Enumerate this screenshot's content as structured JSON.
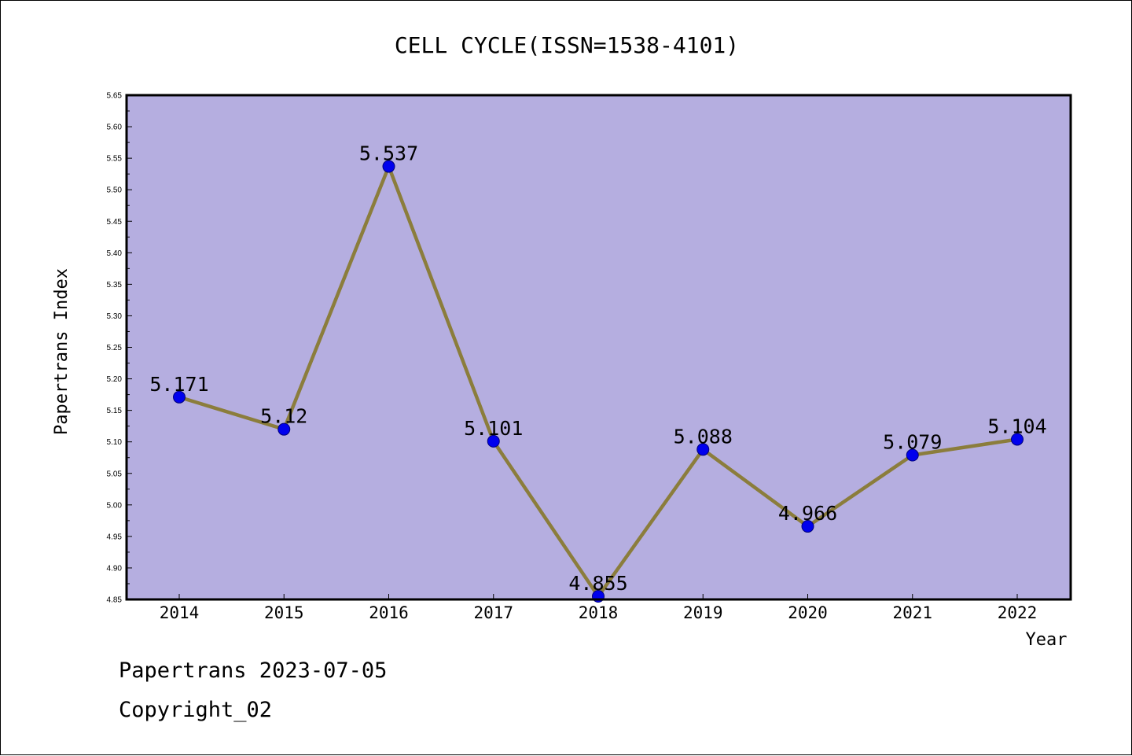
{
  "colors": {
    "plot_background": "#b5aee0",
    "line": "#8b7d3c",
    "marker": "#0000ee",
    "marker_edge": "#00007a",
    "frame": "#000000"
  },
  "footer": {
    "date_line": "Papertrans 2023-07-05",
    "copyright_line": "Copyright_02"
  },
  "chart_data": {
    "type": "line",
    "title": "CELL CYCLE(ISSN=1538-4101)",
    "xlabel": "Year",
    "ylabel": "Papertrans Index",
    "categories": [
      "2014",
      "2015",
      "2016",
      "2017",
      "2018",
      "2019",
      "2020",
      "2021",
      "2022"
    ],
    "series": [
      {
        "values": [
          5.171,
          5.12,
          5.537,
          5.101,
          4.855,
          5.088,
          4.966,
          5.079,
          5.104
        ],
        "labels": [
          "5.171",
          "5.12",
          "5.537",
          "5.101",
          "4.855",
          "5.088",
          "4.966",
          "5.079",
          "5.104"
        ]
      }
    ],
    "ylim": [
      4.85,
      5.65
    ],
    "yticks": [
      "4.85",
      "4.90",
      "4.95",
      "5.00",
      "5.05",
      "5.10",
      "5.15",
      "5.20",
      "5.25",
      "5.30",
      "5.35",
      "5.40",
      "5.45",
      "5.50",
      "5.55",
      "5.60",
      "5.65"
    ],
    "grid": false,
    "legend": "none"
  }
}
